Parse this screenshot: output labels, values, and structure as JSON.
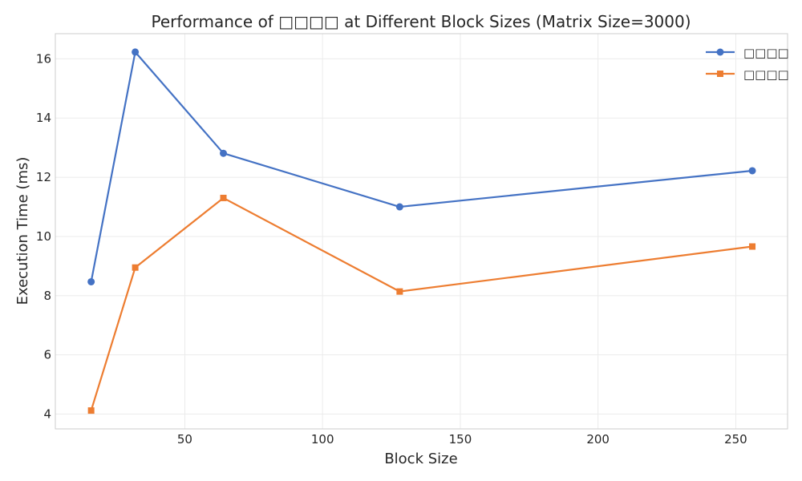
{
  "chart_data": {
    "type": "line",
    "title": "Performance of □□□□ at Different Block Sizes (Matrix Size=3000)",
    "xlabel": "Block Size",
    "ylabel": "Execution Time (ms)",
    "xlim": [
      3.0,
      268.8
    ],
    "ylim": [
      3.5,
      16.85
    ],
    "xticks": [
      50,
      100,
      150,
      200,
      250
    ],
    "yticks": [
      4,
      6,
      8,
      10,
      12,
      14,
      16
    ],
    "grid": true,
    "legend_position": "top-right",
    "x": [
      16,
      32,
      64,
      128,
      256
    ],
    "series": [
      {
        "name": "□□□□",
        "values": [
          8.47,
          16.23,
          12.81,
          11.0,
          12.22
        ],
        "color": "#4472c4",
        "marker": "circle"
      },
      {
        "name": "□□□□",
        "values": [
          4.12,
          8.95,
          11.3,
          8.14,
          9.66
        ],
        "color": "#ed7d31",
        "marker": "square"
      }
    ]
  }
}
